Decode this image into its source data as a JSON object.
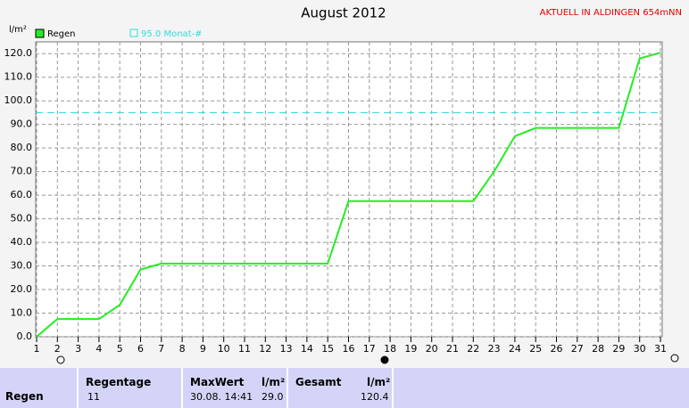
{
  "chart_data": {
    "type": "line",
    "title": "August 2012",
    "subtitle": "AKTUELL IN ALDINGEN 654mNN",
    "y_label": "l/m²",
    "x": [
      1,
      2,
      3,
      4,
      5,
      6,
      7,
      8,
      9,
      10,
      11,
      12,
      13,
      14,
      15,
      16,
      17,
      18,
      19,
      20,
      21,
      22,
      23,
      24,
      25,
      26,
      27,
      28,
      29,
      30,
      31
    ],
    "series": [
      {
        "name": "Regen",
        "color": "#22ee22",
        "values": [
          0,
          7.5,
          7.5,
          7.5,
          13.5,
          28.5,
          31,
          31,
          31,
          31,
          31,
          31,
          31,
          31,
          31,
          57.5,
          57.5,
          57.5,
          57.5,
          57.5,
          57.5,
          57.5,
          70,
          85,
          88.5,
          88.5,
          88.5,
          88.5,
          88.5,
          118,
          120.4
        ]
      }
    ],
    "reference_line": {
      "value": 95,
      "label": "95.0 Monat-#",
      "color": "#33dddd"
    },
    "xlim": [
      1,
      31
    ],
    "xticks": [
      1,
      2,
      3,
      4,
      5,
      6,
      7,
      8,
      9,
      10,
      11,
      12,
      13,
      14,
      15,
      16,
      17,
      18,
      19,
      20,
      21,
      22,
      23,
      24,
      25,
      26,
      27,
      28,
      29,
      30,
      31
    ],
    "ylim": [
      0,
      125
    ],
    "yticks": [
      {
        "value": 0,
        "label": "0.0"
      },
      {
        "value": 10,
        "label": "10.0"
      },
      {
        "value": 20,
        "label": "20.0"
      },
      {
        "value": 30,
        "label": "30.0"
      },
      {
        "value": 40,
        "label": "40.0"
      },
      {
        "value": 50,
        "label": "50.0"
      },
      {
        "value": 60,
        "label": "60.0"
      },
      {
        "value": 70,
        "label": "70.0"
      },
      {
        "value": 80,
        "label": "80.0"
      },
      {
        "value": 90,
        "label": "90.0"
      },
      {
        "value": 100,
        "label": "100.0"
      },
      {
        "value": 110,
        "label": "110.0"
      },
      {
        "value": 120,
        "label": "120.0"
      }
    ],
    "grid": true
  },
  "summary": {
    "row_label": "Regen",
    "days_header": "Regentage",
    "days": "11",
    "max_header": "MaxWert",
    "max_unit": "l/m²",
    "max_time": "30.08. 14:41",
    "max_value": "29.0",
    "total_header": "Gesamt",
    "total_unit": "l/m²",
    "total_value": "120.4"
  }
}
